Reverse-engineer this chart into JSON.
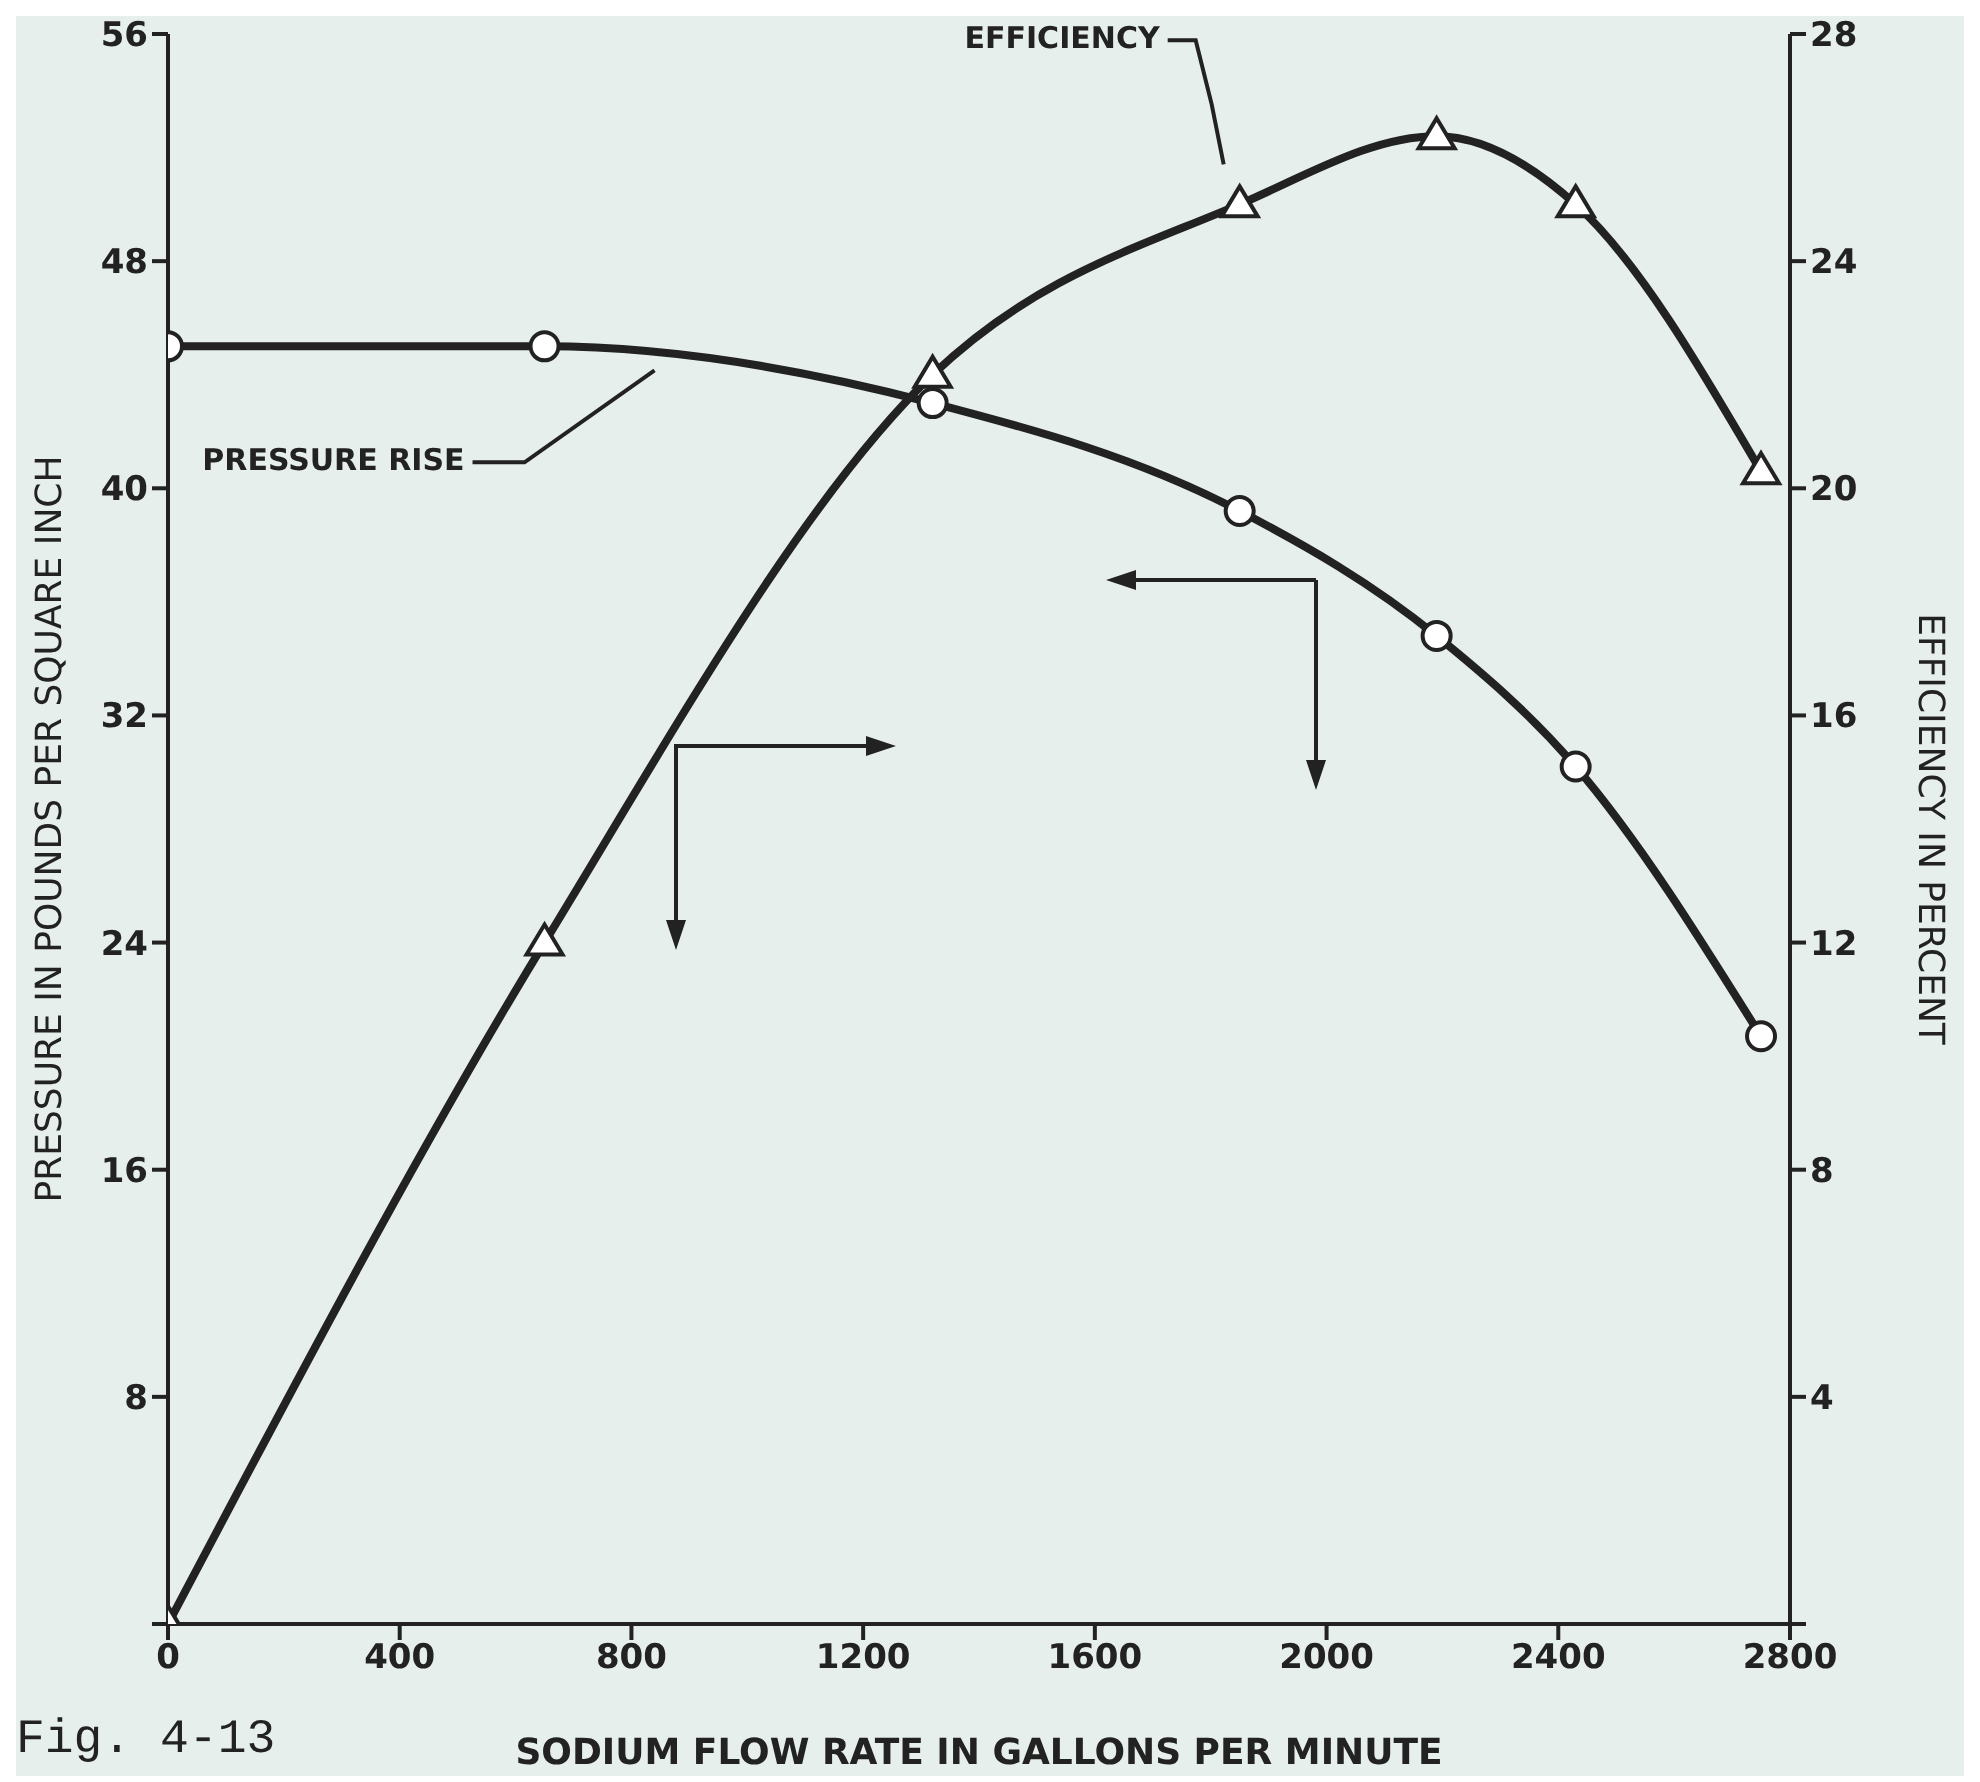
{
  "chart_data": {
    "type": "line",
    "xlabel": "SODIUM FLOW RATE IN GALLONS PER MINUTE",
    "ylabel": "PRESSURE IN POUNDS PER SQUARE INCH",
    "y2label": "EFFICIENCY IN PERCENT",
    "annotations": [
      "Fig. 4-13"
    ],
    "xlim": [
      0,
      2800
    ],
    "xticks": [
      0,
      400,
      800,
      1200,
      1600,
      2000,
      2400,
      2800
    ],
    "ylim": [
      0,
      56
    ],
    "yticks": [
      {
        "value": 0,
        "label": null
      },
      8,
      16,
      24,
      32,
      40,
      48,
      56
    ],
    "y2lim": [
      0,
      28
    ],
    "y2ticks": [
      {
        "value": 0,
        "label": null
      },
      4,
      8,
      12,
      16,
      20,
      24,
      28
    ],
    "line_style": "solid",
    "series": [
      {
        "name": "PRESSURE RISE",
        "color": "#222222",
        "marker": "circle",
        "x": [
          0,
          650,
          1320,
          1850,
          2190,
          2430,
          2750
        ],
        "values": [
          45,
          45,
          43,
          39.2,
          34.8,
          30.2,
          20.7
        ]
      },
      {
        "name": "EFFICIENCY",
        "color": "#222222",
        "marker": "triangle",
        "axis": "y2",
        "x": [
          0,
          650,
          1320,
          1850,
          2190,
          2430,
          2750
        ],
        "values": [
          0,
          12,
          22,
          25,
          26.2,
          25,
          20.3
        ]
      }
    ]
  }
}
